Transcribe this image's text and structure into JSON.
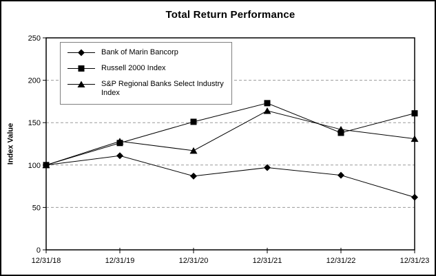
{
  "frame": {
    "background": "#ffffff",
    "border_color": "#000000"
  },
  "chart_data": {
    "type": "line",
    "title": "Total Return Performance",
    "xlabel": "",
    "ylabel": "Index Value",
    "categories": [
      "12/31/18",
      "12/31/19",
      "12/31/20",
      "12/31/21",
      "12/31/22",
      "12/31/23"
    ],
    "y_ticks": [
      0,
      50,
      100,
      150,
      200,
      250
    ],
    "ylim": [
      0,
      250
    ],
    "grid": "horizontal dashed gridlines at 50, 100, 150, 200",
    "legend_position": "top-left inside plot area",
    "line_color": "#000000",
    "gridline_color": "#999999",
    "axis_color": "#000000",
    "series": [
      {
        "name": "Bank of Marin Bancorp",
        "marker": "diamond",
        "color": "#000000",
        "values": [
          100,
          111,
          87,
          97,
          88,
          62
        ]
      },
      {
        "name": "Russell 2000 Index",
        "marker": "square",
        "color": "#000000",
        "values": [
          100,
          126,
          151,
          173,
          138,
          161
        ]
      },
      {
        "name": "S&P Regional Banks Select Industry Index",
        "marker": "triangle",
        "color": "#000000",
        "values": [
          100,
          128,
          117,
          164,
          142,
          131
        ]
      }
    ]
  }
}
